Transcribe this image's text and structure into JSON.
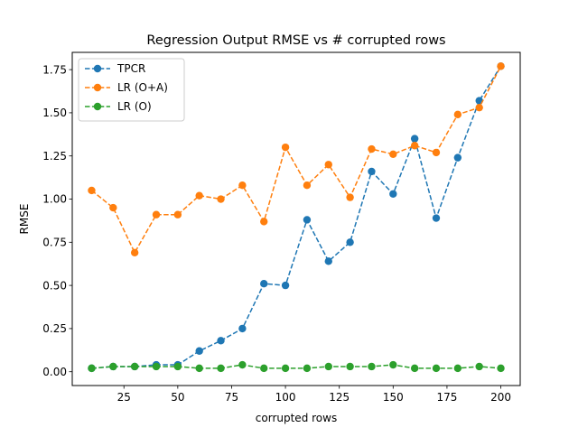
{
  "chart_data": {
    "type": "line",
    "title": "Regression Output RMSE vs # corrupted rows",
    "xlabel": "corrupted rows",
    "ylabel": "RMSE",
    "xlim": [
      1,
      209
    ],
    "ylim": [
      -0.08,
      1.85
    ],
    "xticks": [
      25,
      50,
      75,
      100,
      125,
      150,
      175,
      200
    ],
    "xtick_labels": [
      "25",
      "50",
      "75",
      "100",
      "125",
      "150",
      "175",
      "200"
    ],
    "yticks": [
      0.0,
      0.25,
      0.5,
      0.75,
      1.0,
      1.25,
      1.5,
      1.75
    ],
    "ytick_labels": [
      "0.00",
      "0.25",
      "0.50",
      "0.75",
      "1.00",
      "1.25",
      "1.50",
      "1.75"
    ],
    "grid": false,
    "legend_position": "top-left",
    "x": [
      10,
      20,
      30,
      40,
      50,
      60,
      70,
      80,
      90,
      100,
      110,
      120,
      130,
      140,
      150,
      160,
      170,
      180,
      190,
      200
    ],
    "series": [
      {
        "name": "TPCR",
        "color": "#1f77b4",
        "values": [
          0.02,
          0.03,
          0.03,
          0.04,
          0.04,
          0.12,
          0.18,
          0.25,
          0.51,
          0.5,
          0.88,
          0.64,
          0.75,
          1.16,
          1.03,
          1.35,
          0.89,
          1.24,
          1.57,
          1.77
        ]
      },
      {
        "name": "LR (O+A)",
        "color": "#ff7f0e",
        "values": [
          1.05,
          0.95,
          0.69,
          0.91,
          0.91,
          1.02,
          1.0,
          1.08,
          0.87,
          1.3,
          1.08,
          1.2,
          1.01,
          1.29,
          1.26,
          1.31,
          1.27,
          1.49,
          1.53,
          1.77
        ]
      },
      {
        "name": "LR (O)",
        "color": "#2ca02c",
        "values": [
          0.02,
          0.03,
          0.03,
          0.03,
          0.03,
          0.02,
          0.02,
          0.04,
          0.02,
          0.02,
          0.02,
          0.03,
          0.03,
          0.03,
          0.04,
          0.02,
          0.02,
          0.02,
          0.03,
          0.02
        ]
      }
    ]
  }
}
